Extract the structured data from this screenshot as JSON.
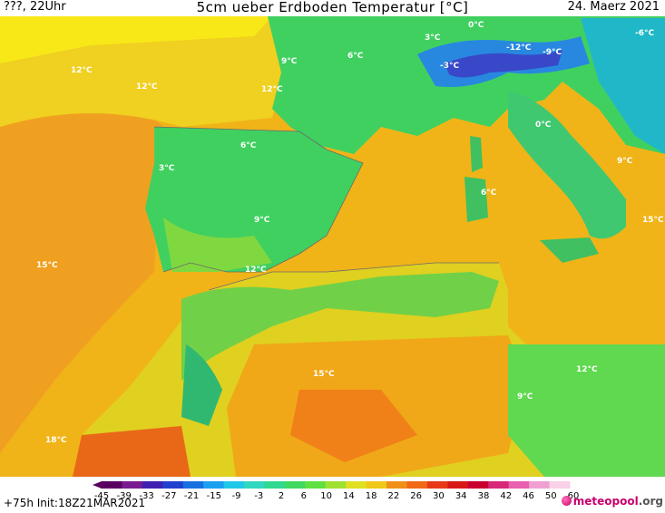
{
  "header": {
    "left": "???, 22Uhr",
    "title": "5cm ueber Erdboden Temperatur [°C]",
    "right": "24. Maerz 2021"
  },
  "footer": {
    "run_info": "+75h Init:18Z21MAR2021",
    "logo_text": "meteopool",
    "logo_suffix": ".org"
  },
  "legend": {
    "ticks": [
      "-45",
      "-39",
      "-33",
      "-27",
      "-21",
      "-15",
      "-9",
      "-3",
      "2",
      "6",
      "10",
      "14",
      "18",
      "22",
      "26",
      "30",
      "34",
      "38",
      "42",
      "46",
      "50",
      "60"
    ],
    "colors": [
      "#5a0060",
      "#7a1a90",
      "#4020b0",
      "#2040d0",
      "#1870e0",
      "#1aa0f0",
      "#20c8e8",
      "#30d8c0",
      "#30d890",
      "#40d860",
      "#60e040",
      "#a0e030",
      "#e0e020",
      "#f0c818",
      "#f09018",
      "#f06818",
      "#e83818",
      "#d81818",
      "#c80030",
      "#d82878",
      "#e860b0",
      "#f0a0d0",
      "#f8d0e8"
    ]
  },
  "labels": [
    {
      "t": "12°C"
    },
    {
      "t": "12°C"
    },
    {
      "t": "12°C"
    },
    {
      "t": "9°C"
    },
    {
      "t": "6°C"
    },
    {
      "t": "3°C"
    },
    {
      "t": "0°C"
    },
    {
      "t": "-3°C"
    },
    {
      "t": "-12°C"
    },
    {
      "t": "-9°C"
    },
    {
      "t": "-6°C"
    },
    {
      "t": "0°C"
    },
    {
      "t": "3°C"
    },
    {
      "t": "6°C"
    },
    {
      "t": "9°C"
    },
    {
      "t": "15°C"
    },
    {
      "t": "6°C"
    },
    {
      "t": "9°C"
    },
    {
      "t": "12°C"
    },
    {
      "t": "18°C"
    },
    {
      "t": "15°C"
    },
    {
      "t": "9°C"
    },
    {
      "t": "12°C"
    },
    {
      "t": "15°C"
    }
  ]
}
